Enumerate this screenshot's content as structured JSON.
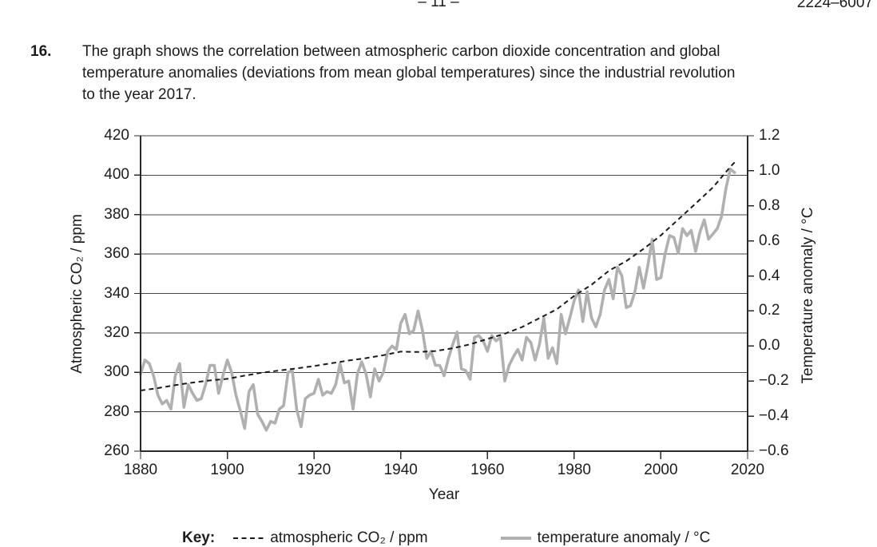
{
  "page": {
    "page_number": "– 11 –",
    "paper_code": "2224–6007"
  },
  "question": {
    "number": "16.",
    "lines": [
      "The graph shows the correlation between atmospheric carbon dioxide concentration and global",
      "temperature anomalies (deviations from mean global temperatures) since the industrial revolution",
      "to the year 2017."
    ]
  },
  "key": {
    "label": "Key:",
    "co2_label": "atmospheric CO₂ / ppm",
    "temp_label": "temperature anomaly / °C"
  },
  "chart_data": {
    "type": "line",
    "title": "",
    "xlabel": "Year",
    "ylabel_left": "Atmospheric CO₂ / ppm",
    "ylabel_right": "Temperature anomaly / °C",
    "xlim": [
      1880,
      2020
    ],
    "ylim_left": [
      260,
      420
    ],
    "ylim_right": [
      -0.6,
      1.2
    ],
    "grid": "horizontal lines at left-axis ticks",
    "legend_position": "below chart",
    "x_ticks": [
      1880,
      1900,
      1920,
      1940,
      1960,
      1980,
      2000,
      2020
    ],
    "x_tick_labels": [
      "1880",
      "1900",
      "1920",
      "1940",
      "1960",
      "1980",
      "2000",
      "2020"
    ],
    "y_left_ticks": [
      260,
      280,
      300,
      320,
      340,
      360,
      380,
      400,
      420
    ],
    "y_left_tick_labels": [
      "260",
      "280",
      "300",
      "320",
      "340",
      "360",
      "380",
      "400",
      "420"
    ],
    "y_right_ticks": [
      -0.6,
      -0.4,
      -0.2,
      0.0,
      0.2,
      0.4,
      0.6,
      0.8,
      1.0,
      1.2
    ],
    "y_right_tick_labels": [
      "−0.6",
      "−0.4",
      "−0.2",
      "0.0",
      "0.2",
      "0.4",
      "0.6",
      "0.8",
      "1.0",
      "1.2"
    ],
    "series": [
      {
        "name": "temperature anomaly / °C",
        "axis": "right",
        "style": "solid",
        "color": "#b0b0b0",
        "x_start": 1880,
        "x_step": 1,
        "values": [
          -0.16,
          -0.08,
          -0.1,
          -0.17,
          -0.28,
          -0.33,
          -0.31,
          -0.36,
          -0.17,
          -0.1,
          -0.35,
          -0.22,
          -0.27,
          -0.31,
          -0.3,
          -0.22,
          -0.11,
          -0.11,
          -0.27,
          -0.17,
          -0.08,
          -0.15,
          -0.28,
          -0.37,
          -0.47,
          -0.26,
          -0.22,
          -0.39,
          -0.43,
          -0.48,
          -0.43,
          -0.44,
          -0.36,
          -0.34,
          -0.15,
          -0.14,
          -0.36,
          -0.46,
          -0.3,
          -0.28,
          -0.27,
          -0.19,
          -0.28,
          -0.26,
          -0.27,
          -0.22,
          -0.1,
          -0.21,
          -0.2,
          -0.36,
          -0.16,
          -0.09,
          -0.16,
          -0.29,
          -0.13,
          -0.2,
          -0.15,
          -0.03,
          0.0,
          -0.02,
          0.13,
          0.18,
          0.07,
          0.09,
          0.2,
          0.09,
          -0.07,
          -0.03,
          -0.11,
          -0.11,
          -0.17,
          -0.07,
          0.01,
          0.08,
          -0.13,
          -0.14,
          -0.19,
          0.05,
          0.06,
          0.03,
          -0.03,
          0.06,
          0.03,
          0.05,
          -0.2,
          -0.11,
          -0.06,
          -0.02,
          -0.08,
          0.05,
          0.02,
          -0.08,
          0.01,
          0.16,
          -0.07,
          -0.01,
          -0.1,
          0.18,
          0.07,
          0.16,
          0.26,
          0.32,
          0.14,
          0.31,
          0.16,
          0.11,
          0.18,
          0.32,
          0.38,
          0.27,
          0.45,
          0.4,
          0.22,
          0.23,
          0.31,
          0.45,
          0.33,
          0.46,
          0.61,
          0.38,
          0.39,
          0.53,
          0.63,
          0.62,
          0.53,
          0.67,
          0.63,
          0.66,
          0.54,
          0.65,
          0.72,
          0.61,
          0.64,
          0.67,
          0.74,
          0.9,
          1.01,
          0.99
        ]
      },
      {
        "name": "atmospheric CO₂ / ppm",
        "axis": "left",
        "style": "dashed",
        "color": "#1a1a1a",
        "x": [
          1880,
          1884,
          1888,
          1892,
          1896,
          1900,
          1904,
          1908,
          1912,
          1916,
          1920,
          1924,
          1928,
          1932,
          1936,
          1940,
          1944,
          1948,
          1952,
          1956,
          1960,
          1964,
          1968,
          1972,
          1976,
          1980,
          1984,
          1988,
          1992,
          1996,
          2000,
          2004,
          2008,
          2012,
          2016,
          2017
        ],
        "values": [
          290.8,
          292.0,
          293.5,
          294.8,
          295.9,
          296.7,
          298.3,
          299.8,
          300.9,
          302.0,
          303.2,
          304.6,
          306.0,
          307.2,
          308.7,
          310.5,
          310.3,
          310.8,
          312.2,
          314.2,
          316.9,
          319.6,
          323.0,
          327.5,
          332.0,
          338.8,
          344.4,
          351.5,
          356.4,
          362.6,
          369.5,
          377.5,
          385.6,
          393.8,
          404.2,
          406.5
        ]
      }
    ]
  }
}
